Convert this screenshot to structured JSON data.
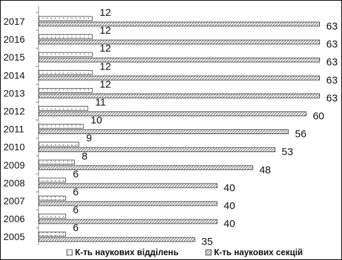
{
  "chart_data": {
    "type": "bar",
    "orientation": "horizontal",
    "categories": [
      "2005",
      "2006",
      "2007",
      "2008",
      "2009",
      "2010",
      "2011",
      "2012",
      "2013",
      "2014",
      "2015",
      "2016",
      "2017"
    ],
    "series": [
      {
        "name": "К-ть наукових відділень",
        "pattern": "dotted",
        "values": [
          6,
          6,
          6,
          6,
          8,
          9,
          10,
          11,
          12,
          12,
          12,
          12,
          12
        ]
      },
      {
        "name": "К-ть наукових секцій",
        "pattern": "hatched",
        "values": [
          35,
          40,
          40,
          40,
          48,
          53,
          56,
          60,
          63,
          63,
          63,
          63,
          63
        ]
      }
    ],
    "xlim": [
      0,
      65
    ],
    "grid": false,
    "legend_position": "bottom",
    "title": "",
    "xlabel": "",
    "ylabel": ""
  },
  "colors": {
    "bar_outline": "#333333",
    "hatch": "#777777",
    "dots": "#555555",
    "axis": "#888888"
  }
}
